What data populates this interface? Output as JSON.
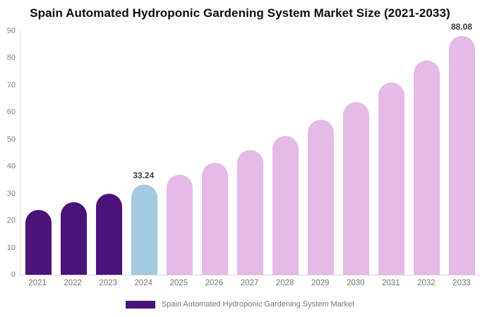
{
  "title": "Spain Automated Hydroponic Gardening System Market Size (2021-2033)",
  "legend": {
    "label": "Spain Automated Hydroponic Gardening System Market",
    "swatch_color": "#4B1279"
  },
  "colors": {
    "historical_bar": "#4B1279",
    "current_bar": "#A2CAE0",
    "forecast_bar": "#E5BAE7",
    "axis_line": "#D9D9D9",
    "tick_text": "#7F7F7F",
    "xlabel_text": "#757575",
    "value_label_text": "#3C3C3C",
    "title_text": "#0D0D0D"
  },
  "chart_data": {
    "type": "bar",
    "title": "Spain Automated Hydroponic Gardening System Market Size (2021-2033)",
    "xlabel": "",
    "ylabel": "",
    "categories": [
      "2021",
      "2022",
      "2023",
      "2024",
      "2025",
      "2026",
      "2027",
      "2028",
      "2029",
      "2030",
      "2031",
      "2032",
      "2033"
    ],
    "values": [
      24.0,
      26.8,
      29.8,
      33.24,
      37.0,
      41.3,
      46.0,
      51.3,
      57.1,
      63.7,
      70.9,
      79.1,
      88.08
    ],
    "bar_segments": [
      "historical",
      "historical",
      "historical",
      "current",
      "forecast",
      "forecast",
      "forecast",
      "forecast",
      "forecast",
      "forecast",
      "forecast",
      "forecast",
      "forecast"
    ],
    "data_labels": {
      "2024": "33.24",
      "2033": "88.08"
    },
    "ylim": [
      0,
      90
    ],
    "yticks": [
      0,
      10,
      20,
      30,
      40,
      50,
      60,
      70,
      80,
      90
    ],
    "grid": false,
    "legend_position": "bottom",
    "legend_entries": [
      "Spain Automated Hydroponic Gardening System Market"
    ]
  }
}
